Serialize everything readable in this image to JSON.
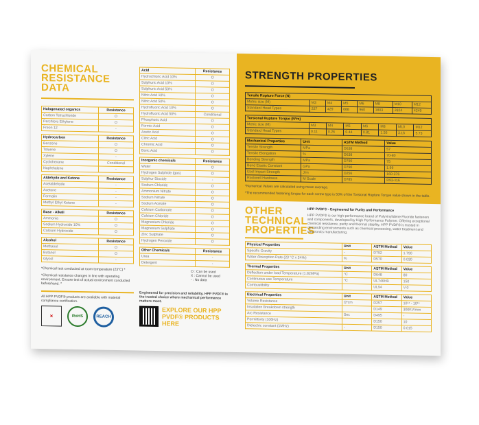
{
  "left": {
    "title": "CHEMICAL RESISTANCE DATA",
    "tables": [
      {
        "header": [
          "Halogenated organics",
          "Resistance"
        ],
        "rows": [
          [
            "Carbon Tetrachloride",
            "O"
          ],
          [
            "Perchloro Ethylene",
            "O"
          ],
          [
            "Freon 12",
            "-"
          ]
        ]
      },
      {
        "header": [
          "Hydrocarbon",
          "Resistance"
        ],
        "rows": [
          [
            "Benzene",
            "O"
          ],
          [
            "Toluene",
            "O"
          ],
          [
            "Xylene",
            "-"
          ],
          [
            "Cyclohexane",
            "Conditional"
          ],
          [
            "Naphthalene",
            "-"
          ]
        ]
      },
      {
        "header": [
          "Aldehyde and Ketone",
          "Resistance"
        ],
        "rows": [
          [
            "Acetaldehyde",
            "-"
          ],
          [
            "Acetone",
            "-"
          ],
          [
            "Formalin",
            "-"
          ],
          [
            "Methyl Ethyl Ketone",
            "-"
          ]
        ]
      },
      {
        "header": [
          "Base - Alkali",
          "Resistance"
        ],
        "rows": [
          [
            "Ammonia",
            "O"
          ],
          [
            "Sodium Hydroxide 10%",
            "O"
          ],
          [
            "Calcium Hydroxide",
            "O"
          ]
        ]
      },
      {
        "header": [
          "Alcohol",
          "Resistance"
        ],
        "rows": [
          [
            "Methanol",
            "O"
          ],
          [
            "Butanol",
            "O"
          ],
          [
            "Glycol",
            "-"
          ]
        ]
      }
    ],
    "note1": "*Chemical test conducted at room temperature (23°C) *",
    "note2": "*Chemical resistance changes in line with operating environment. Ensure test of actual environment conducted beforehand. *",
    "compliance": "All HPP PVDF® products are available with material compliance certification.",
    "logos": [
      "Qualities Veritas ISO 9001-2015",
      "RoHS COMPLIANT",
      "REACH"
    ]
  },
  "middle": {
    "tables": [
      {
        "header": [
          "Acid",
          "Resistance"
        ],
        "rows": [
          [
            "Hydrochloric Acid 10%",
            "O"
          ],
          [
            "Sulphuric Acid 10%",
            "O"
          ],
          [
            "Sulphuric Acid 50%",
            "O"
          ],
          [
            "Nitric Acid 10%",
            "O"
          ],
          [
            "Nitric Acid 50%",
            "O"
          ],
          [
            "Hydrofluoric Acid 10%",
            "O"
          ],
          [
            "Hydrofluoric Acid 50%",
            "Conditional"
          ],
          [
            "Phosphoric Acid",
            "O"
          ],
          [
            "Formic Acid",
            "O"
          ],
          [
            "Acetic Acid",
            "O"
          ],
          [
            "Citric Acid",
            "O"
          ],
          [
            "Chromic Acid",
            "O"
          ],
          [
            "Boric Acid",
            "O"
          ]
        ]
      },
      {
        "header": [
          "Inorganic chemicals",
          "Resistance"
        ],
        "rows": [
          [
            "Water",
            "O"
          ],
          [
            "Hydrogen Sulphide (gas)",
            "O"
          ],
          [
            "Sulphur Dioxide",
            "-"
          ],
          [
            "Sodium Chloride",
            "O"
          ],
          [
            "Ammonium Nitrate",
            "O"
          ],
          [
            "Sodium Nitrate",
            "O"
          ],
          [
            "Sodium Acetate",
            "O"
          ],
          [
            "Calcium Carbonate",
            "O"
          ],
          [
            "Calcium Chloride",
            "O"
          ],
          [
            "Magnesium Chloride",
            "O"
          ],
          [
            "Magnesium Sulphate",
            "O"
          ],
          [
            "Zinc Sulphate",
            "O"
          ],
          [
            "Hydrogen Peroxide",
            "O"
          ]
        ]
      },
      {
        "header": [
          "Other Chemicals",
          "Resistance"
        ],
        "rows": [
          [
            "Urea",
            "-"
          ],
          [
            "Detergent",
            "-"
          ]
        ]
      }
    ],
    "legend": [
      "O : Can be used",
      "X : Cannot be used",
      "- : No data"
    ],
    "tagline": "Engineered for precision and reliability, HPP PVDF® is the trusted choice where mechanical performance matters most.",
    "explore": "EXPLORE OUR HPP PVDF® PRODUCTS HERE"
  },
  "right": {
    "strength_title": "STRENGTH PROPERTIES",
    "strength_tables": [
      {
        "title": "Tensile Rupture Force (N)",
        "rows": [
          [
            "Metric size (M)",
            "M3",
            "M4",
            "M5",
            "M6",
            "M8",
            "M10",
            "M12"
          ],
          [
            "Standard Head Types",
            "227",
            "429",
            "688",
            "960",
            "1803",
            "2824",
            "4249"
          ]
        ]
      },
      {
        "title": "Torsional Rupture Torque (N*m)",
        "rows": [
          [
            "Metric size (M)",
            "M3",
            "M4",
            "M5",
            "M6",
            "M8",
            "M10",
            "M12"
          ],
          [
            "Standard Head Types",
            "0.11",
            "0.26",
            "0.44",
            "0.81",
            "1.56",
            "3.16",
            "5.73"
          ]
        ]
      }
    ],
    "mech_table": {
      "header": [
        "Mechanical Properties",
        "Unit",
        "ASTM Method",
        "Value"
      ],
      "rows": [
        [
          "Tensile Strength",
          "MPa",
          "D638",
          "57"
        ],
        [
          "Tensile Elongation",
          "%",
          "D638",
          "70-80"
        ],
        [
          "Bending Strength",
          "MPa",
          "D790",
          "75"
        ],
        [
          "Bend Elastic Constant",
          "GPa",
          "D790",
          "1.99"
        ],
        [
          "Izod Impact Strength",
          "J/m",
          "D256",
          "160-376"
        ],
        [
          "Rockwell Hardness",
          "M Scale",
          "D785",
          "R93-116"
        ]
      ]
    },
    "note1": "*Numerical Values are calculated using mean average.",
    "note2": "*The recommended fastening torque for each screw type is 50% of the Torsional Rupture Torque value shown in the table.",
    "other_title": "OTHER TECHNICAL PROPERTIES",
    "intro_heading": "HPP PVDF® - Engineered for Purity and Performance",
    "intro_body": "HPP PVDF® is our high-performance brand of Polyvinylidene Fluoride fasteners and components, developed by High Performance Polymer. Offering exceptional chemical resistance, purity and thermal stability, HPP PVDF® is trusted in demanding environments such as chemical processing, water treatment and electronics manufacturing.",
    "tables": [
      {
        "header": [
          "Physical Properties",
          "Unit",
          "ASTM Method",
          "Value"
        ],
        "rows": [
          [
            "Specific Gravity",
            "-",
            "D792",
            "1.790"
          ],
          [
            "Water Absorption Rate (23 °C x 24Hr)",
            "%",
            "D570",
            "0.030"
          ]
        ]
      },
      {
        "header": [
          "Thermal Properties",
          "Unit",
          "ASTM Method",
          "Value"
        ],
        "rows": [
          [
            "Deflection under load Temperature (1.82MPa)",
            "°C",
            "D648",
            "80"
          ],
          [
            "Continuous use Temperature",
            "°C",
            "UL746HB",
            "150"
          ],
          [
            "Combustibility",
            "",
            "UL94",
            "V-0"
          ]
        ]
      },
      {
        "header": [
          "Electrical Properties",
          "Unit",
          "ASTM Method",
          "Value"
        ],
        "rows": [
          [
            "Volume Resistance",
            "Ω*cm",
            "D257",
            "10¹⁴ - 10¹⁵"
          ],
          [
            "Insulation Breakdown strength",
            "",
            "D149",
            "300KV/mm"
          ],
          [
            "Arc Resistance",
            "Sec",
            "D495",
            "-"
          ],
          [
            "Permittivity (106Hz)",
            "",
            "D150",
            "10"
          ],
          [
            "Dielectric constant (1MHz)",
            "-",
            "D150",
            "0.015"
          ]
        ]
      }
    ]
  },
  "colors": {
    "accent": "#e9b422",
    "dark": "#222222"
  }
}
